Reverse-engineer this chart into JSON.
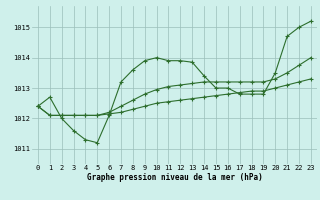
{
  "xlabel": "Graphe pression niveau de la mer (hPa)",
  "bg_color": "#cff0eb",
  "grid_color": "#9bbfba",
  "line_color": "#2d6e2d",
  "xlim": [
    -0.5,
    23.5
  ],
  "ylim": [
    1010.5,
    1015.7
  ],
  "yticks": [
    1011,
    1012,
    1013,
    1014,
    1015
  ],
  "xticks": [
    0,
    1,
    2,
    3,
    4,
    5,
    6,
    7,
    8,
    9,
    10,
    11,
    12,
    13,
    14,
    15,
    16,
    17,
    18,
    19,
    20,
    21,
    22,
    23
  ],
  "lines": [
    [
      1012.4,
      1012.7,
      1012.0,
      1011.6,
      1011.3,
      1011.2,
      1012.1,
      1013.2,
      1013.6,
      1013.9,
      1014.0,
      1013.9,
      1013.9,
      1013.85,
      1013.4,
      1013.0,
      1013.0,
      1012.8,
      1012.8,
      1012.8,
      1013.5,
      1014.7,
      1015.0,
      1015.2
    ],
    [
      1012.4,
      1012.1,
      1012.1,
      1012.1,
      1012.1,
      1012.1,
      1012.15,
      1012.2,
      1012.3,
      1012.4,
      1012.5,
      1012.55,
      1012.6,
      1012.65,
      1012.7,
      1012.75,
      1012.8,
      1012.85,
      1012.9,
      1012.9,
      1013.0,
      1013.1,
      1013.2,
      1013.3
    ],
    [
      1012.4,
      1012.1,
      1012.1,
      1012.1,
      1012.1,
      1012.1,
      1012.2,
      1012.4,
      1012.6,
      1012.8,
      1012.95,
      1013.05,
      1013.1,
      1013.15,
      1013.2,
      1013.2,
      1013.2,
      1013.2,
      1013.2,
      1013.2,
      1013.3,
      1013.5,
      1013.75,
      1014.0
    ]
  ]
}
